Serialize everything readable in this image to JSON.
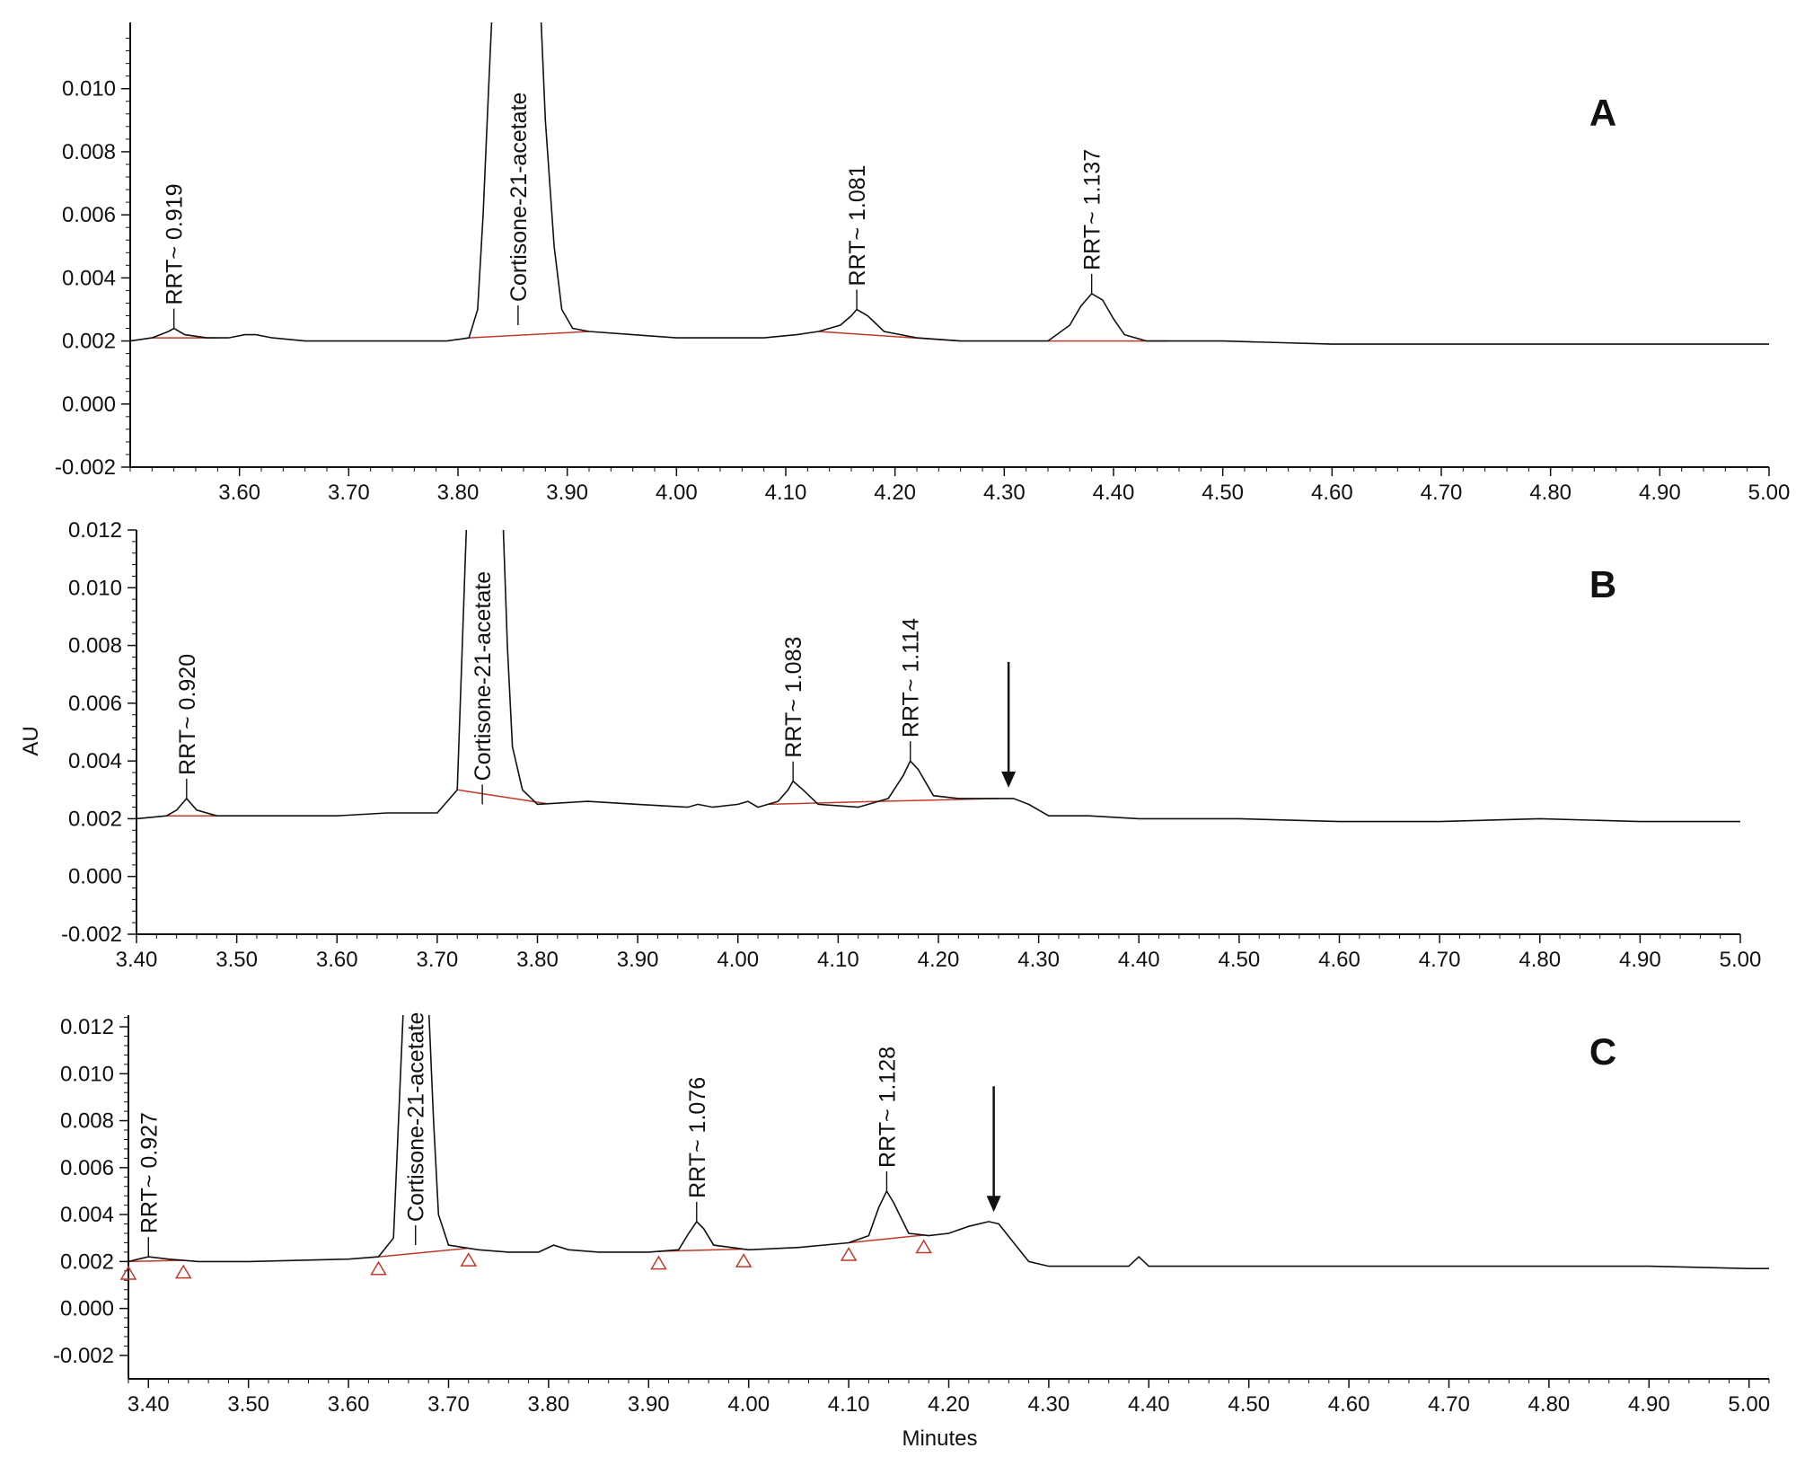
{
  "chart_data": [
    {
      "type": "line",
      "panel_label": "A",
      "xlim": [
        3.5,
        5.0
      ],
      "ylim": [
        -0.002,
        0.0121
      ],
      "xticks": [
        "3.60",
        "3.70",
        "3.80",
        "3.90",
        "4.00",
        "4.10",
        "4.20",
        "4.30",
        "4.40",
        "4.50",
        "4.60",
        "4.70",
        "4.80",
        "4.90",
        "5.00"
      ],
      "yticks": [
        "-0.002",
        "0.000",
        "0.002",
        "0.004",
        "0.006",
        "0.008",
        "0.010"
      ],
      "xlabel": "",
      "ylabel": "",
      "trace": [
        [
          3.5,
          0.002
        ],
        [
          3.52,
          0.0021
        ],
        [
          3.535,
          0.0023
        ],
        [
          3.54,
          0.0024
        ],
        [
          3.55,
          0.0022
        ],
        [
          3.57,
          0.0021
        ],
        [
          3.59,
          0.0021
        ],
        [
          3.605,
          0.0022
        ],
        [
          3.615,
          0.0022
        ],
        [
          3.63,
          0.0021
        ],
        [
          3.66,
          0.002
        ],
        [
          3.7,
          0.002
        ],
        [
          3.75,
          0.002
        ],
        [
          3.79,
          0.002
        ],
        [
          3.81,
          0.0021
        ],
        [
          3.818,
          0.003
        ],
        [
          3.823,
          0.006
        ],
        [
          3.828,
          0.01
        ],
        [
          3.832,
          0.013
        ],
        [
          3.875,
          0.013
        ],
        [
          3.88,
          0.009
        ],
        [
          3.888,
          0.005
        ],
        [
          3.895,
          0.003
        ],
        [
          3.905,
          0.0024
        ],
        [
          3.92,
          0.0023
        ],
        [
          3.96,
          0.0022
        ],
        [
          4.0,
          0.0021
        ],
        [
          4.04,
          0.0021
        ],
        [
          4.08,
          0.0021
        ],
        [
          4.11,
          0.0022
        ],
        [
          4.13,
          0.0023
        ],
        [
          4.15,
          0.0025
        ],
        [
          4.16,
          0.0028
        ],
        [
          4.165,
          0.003
        ],
        [
          4.175,
          0.0028
        ],
        [
          4.19,
          0.0023
        ],
        [
          4.22,
          0.0021
        ],
        [
          4.26,
          0.002
        ],
        [
          4.3,
          0.002
        ],
        [
          4.34,
          0.002
        ],
        [
          4.36,
          0.0025
        ],
        [
          4.37,
          0.0031
        ],
        [
          4.38,
          0.0035
        ],
        [
          4.39,
          0.0033
        ],
        [
          4.4,
          0.0027
        ],
        [
          4.41,
          0.0022
        ],
        [
          4.43,
          0.002
        ],
        [
          4.5,
          0.002
        ],
        [
          4.6,
          0.0019
        ],
        [
          4.7,
          0.0019
        ],
        [
          4.8,
          0.0019
        ],
        [
          4.9,
          0.0019
        ],
        [
          5.0,
          0.0019
        ]
      ],
      "baselines": [
        [
          3.52,
          3.58
        ],
        [
          3.81,
          3.92
        ],
        [
          4.13,
          4.26
        ],
        [
          4.34,
          4.45
        ]
      ],
      "markers": [],
      "arrow_at": null,
      "peak_labels": [
        {
          "text": "RRT~ 0.919",
          "x": 3.54,
          "y": 0.0024
        },
        {
          "text": "Cortisone-21-acetate",
          "x": 3.855,
          "y": 0.0025
        },
        {
          "text": "RRT~ 1.081",
          "x": 4.165,
          "y": 0.003
        },
        {
          "text": "RRT~ 1.137",
          "x": 4.38,
          "y": 0.0035
        }
      ]
    },
    {
      "type": "line",
      "panel_label": "B",
      "xlim": [
        3.4,
        5.0
      ],
      "ylim": [
        -0.002,
        0.012
      ],
      "xticks": [
        "3.40",
        "3.50",
        "3.60",
        "3.70",
        "3.80",
        "3.90",
        "4.00",
        "4.10",
        "4.20",
        "4.30",
        "4.40",
        "4.50",
        "4.60",
        "4.70",
        "4.80",
        "4.90",
        "5.00"
      ],
      "yticks": [
        "-0.002",
        "0.000",
        "0.002",
        "0.004",
        "0.006",
        "0.008",
        "0.010",
        "0.012"
      ],
      "xlabel": "",
      "ylabel": "AU",
      "trace": [
        [
          3.4,
          0.002
        ],
        [
          3.43,
          0.0021
        ],
        [
          3.44,
          0.0023
        ],
        [
          3.45,
          0.0027
        ],
        [
          3.46,
          0.0023
        ],
        [
          3.48,
          0.0021
        ],
        [
          3.55,
          0.0021
        ],
        [
          3.6,
          0.0021
        ],
        [
          3.65,
          0.0022
        ],
        [
          3.7,
          0.0022
        ],
        [
          3.72,
          0.003
        ],
        [
          3.725,
          0.008
        ],
        [
          3.73,
          0.013
        ],
        [
          3.765,
          0.013
        ],
        [
          3.77,
          0.008
        ],
        [
          3.775,
          0.0045
        ],
        [
          3.785,
          0.003
        ],
        [
          3.8,
          0.0025
        ],
        [
          3.85,
          0.0026
        ],
        [
          3.9,
          0.0025
        ],
        [
          3.95,
          0.0024
        ],
        [
          3.96,
          0.0025
        ],
        [
          3.975,
          0.0024
        ],
        [
          4.0,
          0.0025
        ],
        [
          4.01,
          0.0026
        ],
        [
          4.02,
          0.0024
        ],
        [
          4.04,
          0.0026
        ],
        [
          4.05,
          0.003
        ],
        [
          4.055,
          0.0033
        ],
        [
          4.065,
          0.003
        ],
        [
          4.08,
          0.0025
        ],
        [
          4.12,
          0.0024
        ],
        [
          4.15,
          0.0027
        ],
        [
          4.165,
          0.0035
        ],
        [
          4.172,
          0.004
        ],
        [
          4.18,
          0.0037
        ],
        [
          4.195,
          0.0028
        ],
        [
          4.22,
          0.0027
        ],
        [
          4.26,
          0.0027
        ],
        [
          4.275,
          0.0027
        ],
        [
          4.29,
          0.0025
        ],
        [
          4.31,
          0.0021
        ],
        [
          4.35,
          0.0021
        ],
        [
          4.4,
          0.002
        ],
        [
          4.5,
          0.002
        ],
        [
          4.6,
          0.0019
        ],
        [
          4.7,
          0.0019
        ],
        [
          4.8,
          0.002
        ],
        [
          4.9,
          0.0019
        ],
        [
          5.0,
          0.0019
        ]
      ],
      "baselines": [
        [
          3.43,
          3.51
        ],
        [
          3.72,
          3.81
        ],
        [
          4.03,
          4.14
        ],
        [
          4.14,
          4.26
        ]
      ],
      "markers": [],
      "arrow_at": 4.27,
      "peak_labels": [
        {
          "text": "RRT~ 0.920",
          "x": 3.45,
          "y": 0.0027
        },
        {
          "text": "Cortisone-21-acetate",
          "x": 3.745,
          "y": 0.0025
        },
        {
          "text": "RRT~ 1.083",
          "x": 4.055,
          "y": 0.0033
        },
        {
          "text": "RRT~ 1.114",
          "x": 4.172,
          "y": 0.004
        }
      ]
    },
    {
      "type": "line",
      "panel_label": "C",
      "xlim": [
        3.38,
        5.02
      ],
      "ylim": [
        -0.003,
        0.0125
      ],
      "xticks": [
        "3.40",
        "3.50",
        "3.60",
        "3.70",
        "3.80",
        "3.90",
        "4.00",
        "4.10",
        "4.20",
        "4.30",
        "4.40",
        "4.50",
        "4.60",
        "4.70",
        "4.80",
        "4.90",
        "5.00"
      ],
      "yticks": [
        "-0.002",
        "0.000",
        "0.002",
        "0.004",
        "0.006",
        "0.008",
        "0.010",
        "0.012"
      ],
      "xlabel": "Minutes",
      "ylabel": "",
      "trace": [
        [
          3.38,
          0.002
        ],
        [
          3.39,
          0.0021
        ],
        [
          3.4,
          0.0022
        ],
        [
          3.42,
          0.0021
        ],
        [
          3.45,
          0.002
        ],
        [
          3.5,
          0.002
        ],
        [
          3.6,
          0.0021
        ],
        [
          3.63,
          0.0022
        ],
        [
          3.645,
          0.003
        ],
        [
          3.65,
          0.008
        ],
        [
          3.655,
          0.013
        ],
        [
          3.68,
          0.013
        ],
        [
          3.685,
          0.008
        ],
        [
          3.69,
          0.004
        ],
        [
          3.7,
          0.0027
        ],
        [
          3.73,
          0.0025
        ],
        [
          3.76,
          0.0024
        ],
        [
          3.79,
          0.0024
        ],
        [
          3.805,
          0.0027
        ],
        [
          3.82,
          0.0025
        ],
        [
          3.85,
          0.0024
        ],
        [
          3.9,
          0.0024
        ],
        [
          3.93,
          0.0025
        ],
        [
          3.94,
          0.0032
        ],
        [
          3.948,
          0.0037
        ],
        [
          3.955,
          0.0034
        ],
        [
          3.965,
          0.0027
        ],
        [
          4.0,
          0.0025
        ],
        [
          4.05,
          0.0026
        ],
        [
          4.1,
          0.0028
        ],
        [
          4.12,
          0.0031
        ],
        [
          4.13,
          0.0043
        ],
        [
          4.138,
          0.005
        ],
        [
          4.145,
          0.0045
        ],
        [
          4.16,
          0.0032
        ],
        [
          4.18,
          0.0031
        ],
        [
          4.2,
          0.0032
        ],
        [
          4.22,
          0.0035
        ],
        [
          4.24,
          0.0037
        ],
        [
          4.25,
          0.0036
        ],
        [
          4.265,
          0.0028
        ],
        [
          4.28,
          0.002
        ],
        [
          4.3,
          0.0018
        ],
        [
          4.35,
          0.0018
        ],
        [
          4.38,
          0.0018
        ],
        [
          4.39,
          0.0022
        ],
        [
          4.4,
          0.0018
        ],
        [
          4.5,
          0.0018
        ],
        [
          4.6,
          0.0018
        ],
        [
          4.7,
          0.0018
        ],
        [
          4.8,
          0.0018
        ],
        [
          4.9,
          0.0018
        ],
        [
          5.0,
          0.0017
        ],
        [
          5.02,
          0.0017
        ]
      ],
      "baselines": [
        [
          3.38,
          3.435
        ],
        [
          3.63,
          3.72
        ],
        [
          3.91,
          3.995
        ],
        [
          4.1,
          4.175
        ]
      ],
      "markers": [
        3.38,
        3.435,
        3.63,
        3.72,
        3.91,
        3.995,
        4.1,
        4.175
      ],
      "arrow_at": 4.245,
      "peak_labels": [
        {
          "text": "RRT~ 0.927",
          "x": 3.4,
          "y": 0.0022
        },
        {
          "text": "Cortisone-21-acetate",
          "x": 3.667,
          "y": 0.0027
        },
        {
          "text": "RRT~ 1.076",
          "x": 3.948,
          "y": 0.0037
        },
        {
          "text": "RRT~ 1.128",
          "x": 4.138,
          "y": 0.005
        }
      ]
    }
  ],
  "colors": {
    "trace": "#111111",
    "baseline": "#c0392b",
    "marker": "#c0392b",
    "axis": "#111111"
  }
}
